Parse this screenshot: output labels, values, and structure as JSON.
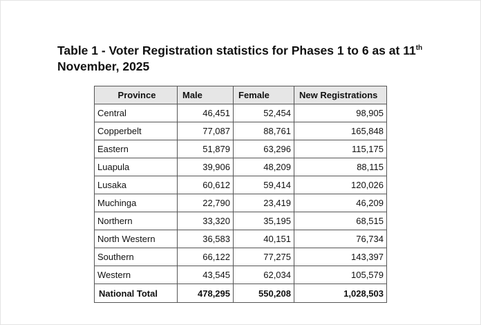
{
  "title": {
    "text": "Table 1 - Voter Registration statistics for Phases 1 to 6 as at 11",
    "superscript": "th",
    "line2": "November, 2025"
  },
  "table": {
    "header": [
      "Province",
      "Male",
      "Female",
      "New Registrations"
    ],
    "rows": [
      [
        "Central",
        "46,451",
        "52,454",
        "98,905"
      ],
      [
        "Copperbelt",
        "77,087",
        "88,761",
        "165,848"
      ],
      [
        "Eastern",
        "51,879",
        "63,296",
        "115,175"
      ],
      [
        "Luapula",
        "39,906",
        "48,209",
        "88,115"
      ],
      [
        "Lusaka",
        "60,612",
        "59,414",
        "120,026"
      ],
      [
        "Muchinga",
        "22,790",
        "23,419",
        "46,209"
      ],
      [
        "Northern",
        "33,320",
        "35,195",
        "68,515"
      ],
      [
        "North Western",
        "36,583",
        "40,151",
        "76,734"
      ],
      [
        "Southern",
        "66,122",
        "77,275",
        "143,397"
      ],
      [
        "Western",
        "43,545",
        "62,034",
        "105,579"
      ]
    ],
    "total": [
      "National Total",
      "478,295",
      "550,208",
      "1,028,503"
    ]
  }
}
